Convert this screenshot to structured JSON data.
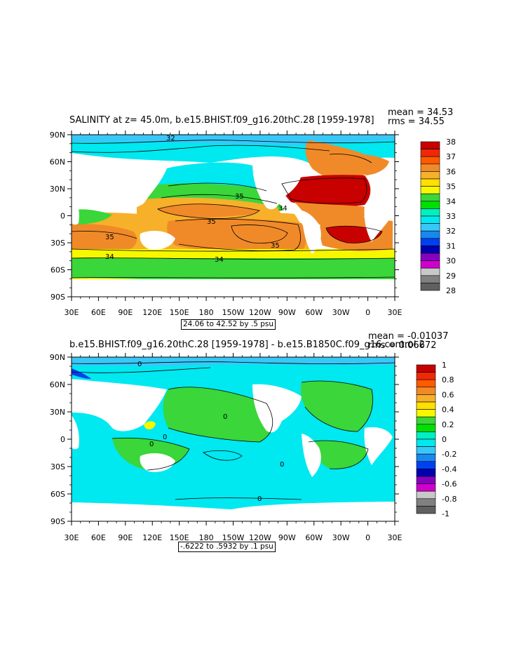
{
  "panels": [
    {
      "title": "SALINITY at z=  45.0m, b.e15.BHIST.f09_g16.20thC.28 [1959-1978]",
      "mean_text": "mean = 34.53",
      "rms_text": "rms = 34.55",
      "caption": "24.06 to 42.52 by .5 psu",
      "colorbar_labels": [
        "38",
        "37",
        "36",
        "35",
        "34",
        "33",
        "32",
        "31",
        "30",
        "29",
        "28"
      ],
      "colorbar_colors": [
        "#c80000",
        "#f02808",
        "#ff5a00",
        "#f08a28",
        "#f7b02a",
        "#ffe000",
        "#f7f700",
        "#3ad63a",
        "#00e000",
        "#00f0c0",
        "#00e8f0",
        "#38c8f8",
        "#1888f0",
        "#0040f0",
        "#0000b0",
        "#8800c0",
        "#d000d0",
        "#c8c8c8",
        "#808080",
        "#606060"
      ],
      "contour_labels": [
        "32",
        "35",
        "34",
        "35",
        "35",
        "34",
        "34",
        "35"
      ]
    },
    {
      "title": "b.e15.BHIST.f09_g16.20thC.28 [1959-1978] - b.e15.B1850C.f09_g16.control.2",
      "mean_text": "mean = -0.01037",
      "rms_text": "rms = 0.06672",
      "caption": "-.6222 to .5932 by .1 psu",
      "colorbar_labels": [
        "1",
        "0.8",
        "0.6",
        "0.4",
        "0.2",
        "0",
        "-0.2",
        "-0.4",
        "-0.6",
        "-0.8",
        "-1"
      ],
      "colorbar_colors": [
        "#c80000",
        "#f02808",
        "#ff5a00",
        "#f08a28",
        "#f7b02a",
        "#ffe000",
        "#f7f700",
        "#3ad63a",
        "#00e000",
        "#00f0c0",
        "#00e8f0",
        "#38c8f8",
        "#1888f0",
        "#0040f0",
        "#0000b0",
        "#8800c0",
        "#d000d0",
        "#c8c8c8",
        "#808080",
        "#606060"
      ],
      "contour_labels": [
        "0",
        "0",
        "0",
        "0",
        "0",
        "0"
      ]
    }
  ],
  "axes": {
    "lon_labels": [
      "30E",
      "60E",
      "90E",
      "120E",
      "150E",
      "180",
      "150W",
      "120W",
      "90W",
      "60W",
      "30W",
      "0",
      "30E"
    ],
    "lat_labels": [
      "90N",
      "60N",
      "30N",
      "0",
      "30S",
      "60S",
      "90S"
    ]
  },
  "colors": {
    "pacific_salt": "#f08a28",
    "high_salt": "#c80000",
    "mid_salt": "#f7b02a",
    "low_salt": "#3ad63a",
    "fresh": "#00e8f0",
    "diff_zero": "#00e8f0",
    "diff_pos": "#3ad63a"
  }
}
